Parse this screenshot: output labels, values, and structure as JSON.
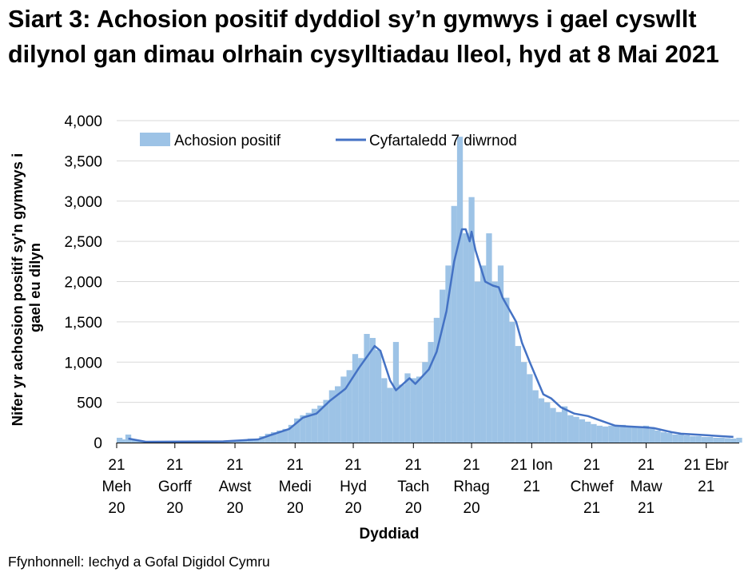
{
  "chart_data": {
    "type": "bar+line",
    "title": "Siart 3: Achosion positif dyddiol sy’n gymwys i gael cyswllt dilynol gan dimau olrhain cysylltiadau lleol, hyd at 8 Mai 2021",
    "xlabel": "Dyddiad",
    "ylabel": "Nifer yr achosion positif sy'n gymwys i gael eu dilyn",
    "ylim": [
      0,
      4000
    ],
    "yticks": [
      "0",
      "500",
      "1,000",
      "1,500",
      "2,000",
      "2,500",
      "3,000",
      "3,500",
      "4,000"
    ],
    "ytick_values": [
      0,
      500,
      1000,
      1500,
      2000,
      2500,
      3000,
      3500,
      4000
    ],
    "xlim": [
      "2020-06-21",
      "2021-05-08"
    ],
    "xticks": [
      {
        "date": "2020-06-21",
        "lines": [
          "21",
          "Meh",
          "20"
        ]
      },
      {
        "date": "2020-07-21",
        "lines": [
          "21",
          "Gorff",
          "20"
        ]
      },
      {
        "date": "2020-08-21",
        "lines": [
          "21",
          "Awst",
          "20"
        ]
      },
      {
        "date": "2020-09-21",
        "lines": [
          "21",
          "Medi",
          "20"
        ]
      },
      {
        "date": "2020-10-21",
        "lines": [
          "21",
          "Hyd",
          "20"
        ]
      },
      {
        "date": "2020-11-21",
        "lines": [
          "21",
          "Tach",
          "20"
        ]
      },
      {
        "date": "2020-12-21",
        "lines": [
          "21",
          "Rhag",
          "20"
        ]
      },
      {
        "date": "2021-01-21",
        "lines": [
          "21 Ion",
          "21"
        ]
      },
      {
        "date": "2021-02-21",
        "lines": [
          "21",
          "Chwef",
          "21"
        ]
      },
      {
        "date": "2021-03-21",
        "lines": [
          "21",
          "Maw",
          "21"
        ]
      },
      {
        "date": "2021-04-21",
        "lines": [
          "21 Ebr",
          "21"
        ]
      }
    ],
    "grid": true,
    "legend_position": "top",
    "colors": {
      "bars": "#9dc3e6",
      "line": "#4472c4",
      "grid": "#d9d9d9"
    },
    "series": [
      {
        "name": "Achosion positif",
        "type": "bar",
        "points": [
          [
            "2020-06-21",
            60
          ],
          [
            "2020-06-24",
            40
          ],
          [
            "2020-06-27",
            100
          ],
          [
            "2020-06-30",
            40
          ],
          [
            "2020-07-03",
            20
          ],
          [
            "2020-07-06",
            15
          ],
          [
            "2020-07-09",
            20
          ],
          [
            "2020-07-12",
            15
          ],
          [
            "2020-07-15",
            15
          ],
          [
            "2020-07-18",
            20
          ],
          [
            "2020-07-21",
            15
          ],
          [
            "2020-07-24",
            15
          ],
          [
            "2020-07-27",
            20
          ],
          [
            "2020-07-30",
            20
          ],
          [
            "2020-08-02",
            15
          ],
          [
            "2020-08-05",
            20
          ],
          [
            "2020-08-08",
            20
          ],
          [
            "2020-08-11",
            25
          ],
          [
            "2020-08-14",
            25
          ],
          [
            "2020-08-17",
            25
          ],
          [
            "2020-08-20",
            30
          ],
          [
            "2020-08-23",
            30
          ],
          [
            "2020-08-26",
            40
          ],
          [
            "2020-08-29",
            50
          ],
          [
            "2020-09-01",
            50
          ],
          [
            "2020-09-04",
            80
          ],
          [
            "2020-09-07",
            110
          ],
          [
            "2020-09-10",
            130
          ],
          [
            "2020-09-13",
            150
          ],
          [
            "2020-09-16",
            170
          ],
          [
            "2020-09-19",
            220
          ],
          [
            "2020-09-22",
            300
          ],
          [
            "2020-09-25",
            340
          ],
          [
            "2020-09-28",
            370
          ],
          [
            "2020-10-01",
            420
          ],
          [
            "2020-10-04",
            460
          ],
          [
            "2020-10-07",
            530
          ],
          [
            "2020-10-10",
            650
          ],
          [
            "2020-10-13",
            700
          ],
          [
            "2020-10-16",
            820
          ],
          [
            "2020-10-19",
            900
          ],
          [
            "2020-10-22",
            1100
          ],
          [
            "2020-10-25",
            1050
          ],
          [
            "2020-10-28",
            1350
          ],
          [
            "2020-10-31",
            1300
          ],
          [
            "2020-11-03",
            1150
          ],
          [
            "2020-11-06",
            800
          ],
          [
            "2020-11-09",
            680
          ],
          [
            "2020-11-12",
            1250
          ],
          [
            "2020-11-15",
            720
          ],
          [
            "2020-11-18",
            860
          ],
          [
            "2020-11-21",
            800
          ],
          [
            "2020-11-24",
            820
          ],
          [
            "2020-11-27",
            1000
          ],
          [
            "2020-11-30",
            1250
          ],
          [
            "2020-12-03",
            1550
          ],
          [
            "2020-12-06",
            1900
          ],
          [
            "2020-12-09",
            2200
          ],
          [
            "2020-12-12",
            2940
          ],
          [
            "2020-12-15",
            3800
          ],
          [
            "2020-12-18",
            2600
          ],
          [
            "2020-12-21",
            3050
          ],
          [
            "2020-12-24",
            2000
          ],
          [
            "2020-12-27",
            2200
          ],
          [
            "2020-12-30",
            2600
          ],
          [
            "2021-01-02",
            2000
          ],
          [
            "2021-01-05",
            2200
          ],
          [
            "2021-01-08",
            1800
          ],
          [
            "2021-01-11",
            1500
          ],
          [
            "2021-01-14",
            1200
          ],
          [
            "2021-01-17",
            1000
          ],
          [
            "2021-01-20",
            850
          ],
          [
            "2021-01-23",
            650
          ],
          [
            "2021-01-26",
            550
          ],
          [
            "2021-01-29",
            500
          ],
          [
            "2021-02-01",
            430
          ],
          [
            "2021-02-04",
            380
          ],
          [
            "2021-02-07",
            450
          ],
          [
            "2021-02-10",
            340
          ],
          [
            "2021-02-13",
            320
          ],
          [
            "2021-02-16",
            290
          ],
          [
            "2021-02-19",
            260
          ],
          [
            "2021-02-22",
            230
          ],
          [
            "2021-02-25",
            210
          ],
          [
            "2021-02-28",
            200
          ],
          [
            "2021-03-03",
            210
          ],
          [
            "2021-03-06",
            200
          ],
          [
            "2021-03-09",
            220
          ],
          [
            "2021-03-12",
            190
          ],
          [
            "2021-03-15",
            200
          ],
          [
            "2021-03-18",
            190
          ],
          [
            "2021-03-21",
            210
          ],
          [
            "2021-03-24",
            170
          ],
          [
            "2021-03-27",
            150
          ],
          [
            "2021-03-30",
            130
          ],
          [
            "2021-04-02",
            120
          ],
          [
            "2021-04-05",
            100
          ],
          [
            "2021-04-08",
            110
          ],
          [
            "2021-04-11",
            90
          ],
          [
            "2021-04-14",
            80
          ],
          [
            "2021-04-17",
            80
          ],
          [
            "2021-04-20",
            70
          ],
          [
            "2021-04-23",
            70
          ],
          [
            "2021-04-26",
            60
          ],
          [
            "2021-04-29",
            60
          ],
          [
            "2021-05-02",
            55
          ],
          [
            "2021-05-05",
            50
          ],
          [
            "2021-05-08",
            60
          ]
        ]
      },
      {
        "name": "Cyfartaledd 7 diwrnod",
        "type": "line",
        "points": [
          [
            "2020-06-27",
            50
          ],
          [
            "2020-07-06",
            10
          ],
          [
            "2020-08-15",
            15
          ],
          [
            "2020-09-02",
            40
          ],
          [
            "2020-09-08",
            90
          ],
          [
            "2020-09-18",
            170
          ],
          [
            "2020-09-25",
            310
          ],
          [
            "2020-10-02",
            360
          ],
          [
            "2020-10-09",
            520
          ],
          [
            "2020-10-17",
            670
          ],
          [
            "2020-10-24",
            930
          ],
          [
            "2020-11-01",
            1200
          ],
          [
            "2020-11-04",
            1140
          ],
          [
            "2020-11-09",
            770
          ],
          [
            "2020-11-12",
            650
          ],
          [
            "2020-11-19",
            800
          ],
          [
            "2020-11-22",
            730
          ],
          [
            "2020-11-29",
            910
          ],
          [
            "2020-12-03",
            1130
          ],
          [
            "2020-12-08",
            1630
          ],
          [
            "2020-12-12",
            2250
          ],
          [
            "2020-12-16",
            2650
          ],
          [
            "2020-12-18",
            2650
          ],
          [
            "2020-12-20",
            2500
          ],
          [
            "2020-12-21",
            2620
          ],
          [
            "2020-12-23",
            2390
          ],
          [
            "2020-12-28",
            2000
          ],
          [
            "2021-01-01",
            1950
          ],
          [
            "2021-01-04",
            1930
          ],
          [
            "2021-01-06",
            1800
          ],
          [
            "2021-01-13",
            1500
          ],
          [
            "2021-01-16",
            1240
          ],
          [
            "2021-01-20",
            1000
          ],
          [
            "2021-01-24",
            770
          ],
          [
            "2021-01-27",
            600
          ],
          [
            "2021-01-31",
            550
          ],
          [
            "2021-02-05",
            440
          ],
          [
            "2021-02-12",
            360
          ],
          [
            "2021-02-19",
            330
          ],
          [
            "2021-02-26",
            270
          ],
          [
            "2021-03-05",
            210
          ],
          [
            "2021-03-12",
            200
          ],
          [
            "2021-03-20",
            190
          ],
          [
            "2021-03-25",
            180
          ],
          [
            "2021-04-03",
            130
          ],
          [
            "2021-04-08",
            110
          ],
          [
            "2021-04-22",
            90
          ],
          [
            "2021-04-28",
            80
          ],
          [
            "2021-05-05",
            70
          ]
        ]
      }
    ]
  },
  "source": "Ffynhonnell: Iechyd a Gofal Digidol Cymru"
}
